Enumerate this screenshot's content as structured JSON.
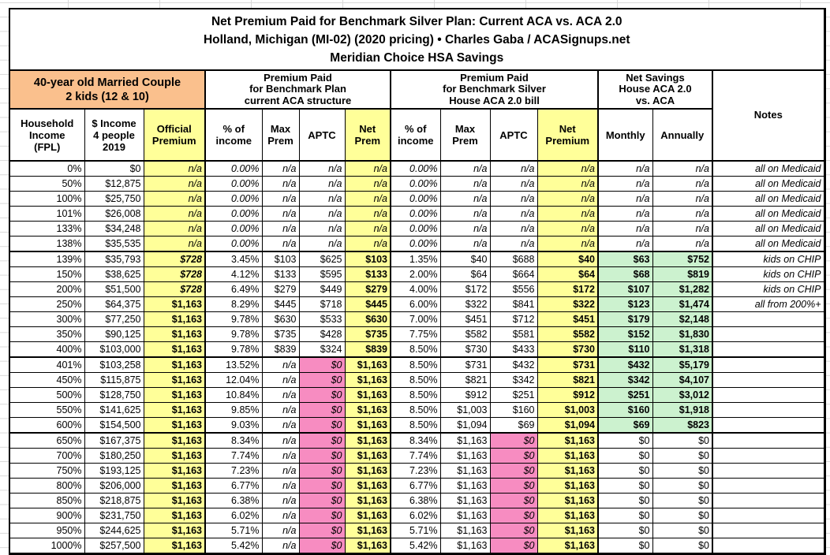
{
  "title_lines": [
    "Net Premium Paid for Benchmark Silver Plan: Current ACA vs. ACA 2.0",
    "Holland, Michigan (MI-02) (2020 pricing) • Charles Gaba / ACASignups.net",
    "Meridian Choice HSA Savings"
  ],
  "group_headers": {
    "household": [
      "40-year old Married Couple",
      "2 kids (12 & 10)"
    ],
    "current_aca": [
      "Premium Paid",
      "for Benchmark Plan",
      "current ACA structure"
    ],
    "house_aca20": [
      "Premium Paid",
      "for Benchmark Silver",
      "House ACA 2.0 bill"
    ],
    "net_savings": [
      "Net Savings",
      "House ACA 2.0",
      "vs. ACA"
    ],
    "notes": "Notes"
  },
  "columns": [
    {
      "id": "fpl",
      "lines": [
        "Household",
        "Income",
        "(FPL)"
      ]
    },
    {
      "id": "income-2019",
      "lines": [
        "$ Income",
        "4 people",
        "2019"
      ]
    },
    {
      "id": "official-premium",
      "lines": [
        "Official",
        "Premium"
      ],
      "yellow": true
    },
    {
      "id": "pct-income-aca",
      "lines": [
        "% of",
        "income"
      ]
    },
    {
      "id": "max-prem-aca",
      "lines": [
        "Max",
        "Prem"
      ]
    },
    {
      "id": "aptc-aca",
      "lines": [
        "APTC"
      ]
    },
    {
      "id": "net-prem-aca",
      "lines": [
        "Net",
        "Prem"
      ],
      "yellow": true
    },
    {
      "id": "pct-income-aca20",
      "lines": [
        "% of",
        "income"
      ]
    },
    {
      "id": "max-prem-aca20",
      "lines": [
        "Max",
        "Prem"
      ]
    },
    {
      "id": "aptc-aca20",
      "lines": [
        "APTC"
      ]
    },
    {
      "id": "net-premium-aca20",
      "lines": [
        "Net",
        "Premium"
      ],
      "yellow": true
    },
    {
      "id": "savings-monthly",
      "lines": [
        "Monthly"
      ]
    },
    {
      "id": "savings-annually",
      "lines": [
        "Annually"
      ]
    },
    {
      "id": "notes",
      "lines": []
    }
  ],
  "rows": [
    [
      "0%",
      "$0",
      "n/a",
      "0.00%",
      "n/a",
      "n/a",
      "n/a",
      "0.00%",
      "n/a",
      "n/a",
      "n/a",
      "n/a",
      "n/a",
      "all on Medicaid"
    ],
    [
      "50%",
      "$12,875",
      "n/a",
      "0.00%",
      "n/a",
      "n/a",
      "n/a",
      "0.00%",
      "n/a",
      "n/a",
      "n/a",
      "n/a",
      "n/a",
      "all on Medicaid"
    ],
    [
      "100%",
      "$25,750",
      "n/a",
      "0.00%",
      "n/a",
      "n/a",
      "n/a",
      "0.00%",
      "n/a",
      "n/a",
      "n/a",
      "n/a",
      "n/a",
      "all on Medicaid"
    ],
    [
      "101%",
      "$26,008",
      "n/a",
      "0.00%",
      "n/a",
      "n/a",
      "n/a",
      "0.00%",
      "n/a",
      "n/a",
      "n/a",
      "n/a",
      "n/a",
      "all on Medicaid"
    ],
    [
      "133%",
      "$34,248",
      "n/a",
      "0.00%",
      "n/a",
      "n/a",
      "n/a",
      "0.00%",
      "n/a",
      "n/a",
      "n/a",
      "n/a",
      "n/a",
      "all on Medicaid"
    ],
    [
      "138%",
      "$35,535",
      "n/a",
      "0.00%",
      "n/a",
      "n/a",
      "n/a",
      "0.00%",
      "n/a",
      "n/a",
      "n/a",
      "n/a",
      "n/a",
      "all on Medicaid"
    ],
    [
      "139%",
      "$35,793",
      "$728",
      "3.45%",
      "$103",
      "$625",
      "$103",
      "1.35%",
      "$40",
      "$688",
      "$40",
      "$63",
      "$752",
      "kids on CHIP"
    ],
    [
      "150%",
      "$38,625",
      "$728",
      "4.12%",
      "$133",
      "$595",
      "$133",
      "2.00%",
      "$64",
      "$664",
      "$64",
      "$68",
      "$819",
      "kids on CHIP"
    ],
    [
      "200%",
      "$51,500",
      "$728",
      "6.49%",
      "$279",
      "$449",
      "$279",
      "4.00%",
      "$172",
      "$556",
      "$172",
      "$107",
      "$1,282",
      "kids on CHIP"
    ],
    [
      "250%",
      "$64,375",
      "$1,163",
      "8.29%",
      "$445",
      "$718",
      "$445",
      "6.00%",
      "$322",
      "$841",
      "$322",
      "$123",
      "$1,474",
      "all from 200%+"
    ],
    [
      "300%",
      "$77,250",
      "$1,163",
      "9.78%",
      "$630",
      "$533",
      "$630",
      "7.00%",
      "$451",
      "$712",
      "$451",
      "$179",
      "$2,148",
      ""
    ],
    [
      "350%",
      "$90,125",
      "$1,163",
      "9.78%",
      "$735",
      "$428",
      "$735",
      "7.75%",
      "$582",
      "$581",
      "$582",
      "$152",
      "$1,830",
      ""
    ],
    [
      "400%",
      "$103,000",
      "$1,163",
      "9.78%",
      "$839",
      "$324",
      "$839",
      "8.50%",
      "$730",
      "$433",
      "$730",
      "$110",
      "$1,318",
      ""
    ],
    [
      "401%",
      "$103,258",
      "$1,163",
      "13.52%",
      "n/a",
      "$0",
      "$1,163",
      "8.50%",
      "$731",
      "$432",
      "$731",
      "$432",
      "$5,179",
      ""
    ],
    [
      "450%",
      "$115,875",
      "$1,163",
      "12.04%",
      "n/a",
      "$0",
      "$1,163",
      "8.50%",
      "$821",
      "$342",
      "$821",
      "$342",
      "$4,107",
      ""
    ],
    [
      "500%",
      "$128,750",
      "$1,163",
      "10.84%",
      "n/a",
      "$0",
      "$1,163",
      "8.50%",
      "$912",
      "$251",
      "$912",
      "$251",
      "$3,012",
      ""
    ],
    [
      "550%",
      "$141,625",
      "$1,163",
      "9.85%",
      "n/a",
      "$0",
      "$1,163",
      "8.50%",
      "$1,003",
      "$160",
      "$1,003",
      "$160",
      "$1,918",
      ""
    ],
    [
      "600%",
      "$154,500",
      "$1,163",
      "9.03%",
      "n/a",
      "$0",
      "$1,163",
      "8.50%",
      "$1,094",
      "$69",
      "$1,094",
      "$69",
      "$823",
      ""
    ],
    [
      "650%",
      "$167,375",
      "$1,163",
      "8.34%",
      "n/a",
      "$0",
      "$1,163",
      "8.34%",
      "$1,163",
      "$0",
      "$1,163",
      "$0",
      "$0",
      ""
    ],
    [
      "700%",
      "$180,250",
      "$1,163",
      "7.74%",
      "n/a",
      "$0",
      "$1,163",
      "7.74%",
      "$1,163",
      "$0",
      "$1,163",
      "$0",
      "$0",
      ""
    ],
    [
      "750%",
      "$193,125",
      "$1,163",
      "7.23%",
      "n/a",
      "$0",
      "$1,163",
      "7.23%",
      "$1,163",
      "$0",
      "$1,163",
      "$0",
      "$0",
      ""
    ],
    [
      "800%",
      "$206,000",
      "$1,163",
      "6.77%",
      "n/a",
      "$0",
      "$1,163",
      "6.77%",
      "$1,163",
      "$0",
      "$1,163",
      "$0",
      "$0",
      ""
    ],
    [
      "850%",
      "$218,875",
      "$1,163",
      "6.38%",
      "n/a",
      "$0",
      "$1,163",
      "6.38%",
      "$1,163",
      "$0",
      "$1,163",
      "$0",
      "$0",
      ""
    ],
    [
      "900%",
      "$231,750",
      "$1,163",
      "6.02%",
      "n/a",
      "$0",
      "$1,163",
      "6.02%",
      "$1,163",
      "$0",
      "$1,163",
      "$0",
      "$0",
      ""
    ],
    [
      "950%",
      "$244,625",
      "$1,163",
      "5.71%",
      "n/a",
      "$0",
      "$1,163",
      "5.71%",
      "$1,163",
      "$0",
      "$1,163",
      "$0",
      "$0",
      ""
    ],
    [
      "1000%",
      "$257,500",
      "$1,163",
      "5.42%",
      "n/a",
      "$0",
      "$1,163",
      "5.42%",
      "$1,163",
      "$0",
      "$1,163",
      "$0",
      "$0",
      ""
    ]
  ],
  "style_rules": {
    "yellow_cols": [
      2,
      6,
      10
    ],
    "green_cols": [
      11,
      12
    ],
    "green_row_start": 6,
    "green_row_end": 17,
    "pink_ranges": [
      {
        "col": 5,
        "row_start": 13,
        "row_end": 25
      },
      {
        "col": 9,
        "row_start": 18,
        "row_end": 25
      }
    ],
    "italic_values": [
      "0.00%",
      "$728"
    ],
    "small_note_rows": [
      9
    ],
    "thick_top_rows": [
      6,
      13,
      18
    ],
    "thick_left_cols": [
      3,
      7,
      11,
      13
    ],
    "notes_col": 13
  },
  "colors": {
    "orange": "#FAC08D",
    "yellow": "#FFFF99",
    "pink": "#F78CC1",
    "green": "#CCF2CF",
    "grid": "#D9D9D9",
    "border": "#000000"
  }
}
